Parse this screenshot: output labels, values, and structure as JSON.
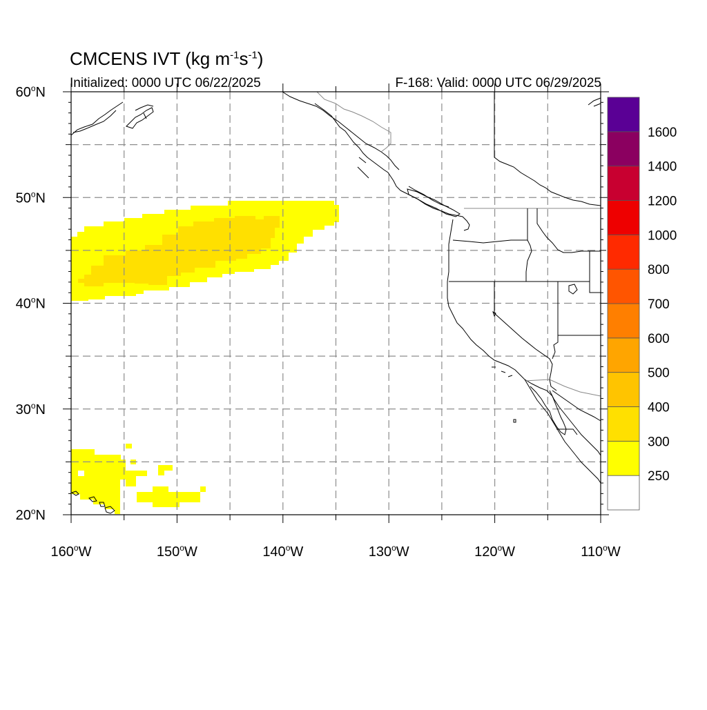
{
  "title": {
    "prefix": "CMCENS IVT (kg m",
    "exp1": "-1",
    "mid": "s",
    "exp2": "-1",
    "suffix": ")"
  },
  "initialized": "Initialized: 0000 UTC 06/22/2025",
  "valid": "F-168: Valid: 0000 UTC 06/29/2025",
  "map": {
    "lon_range": [
      -160,
      -110
    ],
    "lat_range": [
      20,
      60
    ],
    "lat_labels": [
      {
        "lat": 60,
        "deg": "60",
        "hem": "N"
      },
      {
        "lat": 50,
        "deg": "50",
        "hem": "N"
      },
      {
        "lat": 40,
        "deg": "40",
        "hem": "N"
      },
      {
        "lat": 30,
        "deg": "30",
        "hem": "N"
      },
      {
        "lat": 20,
        "deg": "20",
        "hem": "N"
      }
    ],
    "lon_labels": [
      {
        "lon": -160,
        "deg": "160",
        "hem": "W"
      },
      {
        "lon": -150,
        "deg": "150",
        "hem": "W"
      },
      {
        "lon": -140,
        "deg": "140",
        "hem": "W"
      },
      {
        "lon": -130,
        "deg": "130",
        "hem": "W"
      },
      {
        "lon": -120,
        "deg": "120",
        "hem": "W"
      },
      {
        "lon": -110,
        "deg": "110",
        "hem": "W"
      }
    ],
    "gridlines": "dashed gray every 5°",
    "colorbar": {
      "labels": [
        "250",
        "300",
        "400",
        "500",
        "600",
        "700",
        "800",
        "1000",
        "1200",
        "1400",
        "1600"
      ],
      "colors": [
        "#ffffff",
        "#ffff00",
        "#ffe000",
        "#ffc400",
        "#ffa500",
        "#ff7f00",
        "#ff5500",
        "#ff2a00",
        "#ee0000",
        "#c80030",
        "#8b0060",
        "#5a0095"
      ]
    }
  }
}
